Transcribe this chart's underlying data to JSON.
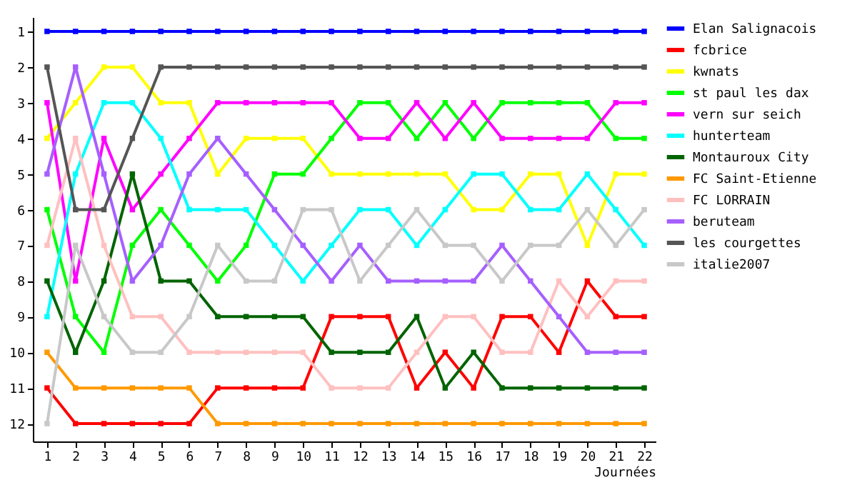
{
  "chart_data": {
    "type": "line",
    "xlabel": "Journées",
    "x": [
      1,
      2,
      3,
      4,
      5,
      6,
      7,
      8,
      9,
      10,
      11,
      12,
      13,
      14,
      15,
      16,
      17,
      18,
      19,
      20,
      21,
      22
    ],
    "xlim": [
      0.5,
      22.4
    ],
    "xticks": [
      1,
      2,
      3,
      4,
      5,
      6,
      7,
      8,
      9,
      10,
      11,
      12,
      13,
      14,
      15,
      16,
      17,
      18,
      19,
      20,
      21,
      22
    ],
    "ylim": [
      12.5,
      0.6
    ],
    "yticks": [
      1,
      2,
      3,
      4,
      5,
      6,
      7,
      8,
      9,
      10,
      11,
      12
    ],
    "grid": false,
    "legend": "right",
    "marker": "square",
    "line_style": "solid",
    "series": [
      {
        "name": "Elan Salignacois",
        "color": "#0000ff",
        "values": [
          1,
          1,
          1,
          1,
          1,
          1,
          1,
          1,
          1,
          1,
          1,
          1,
          1,
          1,
          1,
          1,
          1,
          1,
          1,
          1,
          1,
          1
        ]
      },
      {
        "name": "fcbrice",
        "color": "#ff0000",
        "values": [
          11,
          12,
          12,
          12,
          12,
          12,
          11,
          11,
          11,
          11,
          9,
          9,
          9,
          11,
          10,
          11,
          9,
          9,
          10,
          8,
          9,
          9
        ]
      },
      {
        "name": "kwnats",
        "color": "#ffff00",
        "values": [
          4,
          3,
          2,
          2,
          3,
          3,
          5,
          4,
          4,
          4,
          5,
          5,
          5,
          5,
          5,
          6,
          6,
          5,
          5,
          7,
          5,
          5
        ]
      },
      {
        "name": "st paul les dax",
        "color": "#00ff00",
        "values": [
          6,
          9,
          10,
          7,
          6,
          7,
          8,
          7,
          5,
          5,
          4,
          3,
          3,
          4,
          3,
          4,
          3,
          3,
          3,
          3,
          4,
          4
        ]
      },
      {
        "name": "vern sur seich",
        "color": "#ff00ff",
        "values": [
          3,
          8,
          4,
          6,
          5,
          4,
          3,
          3,
          3,
          3,
          3,
          4,
          4,
          3,
          4,
          3,
          4,
          4,
          4,
          4,
          3,
          3
        ]
      },
      {
        "name": "hunterteam",
        "color": "#00ffff",
        "values": [
          9,
          5,
          3,
          3,
          4,
          6,
          6,
          6,
          7,
          8,
          7,
          6,
          6,
          7,
          6,
          5,
          5,
          6,
          6,
          5,
          6,
          7
        ]
      },
      {
        "name": "Montauroux City",
        "color": "#006400",
        "values": [
          8,
          10,
          8,
          5,
          8,
          8,
          9,
          9,
          9,
          9,
          10,
          10,
          10,
          9,
          11,
          10,
          11,
          11,
          11,
          11,
          11,
          11
        ]
      },
      {
        "name": "FC Saint-Etienne",
        "color": "#ff9900",
        "values": [
          10,
          11,
          11,
          11,
          11,
          11,
          12,
          12,
          12,
          12,
          12,
          12,
          12,
          12,
          12,
          12,
          12,
          12,
          12,
          12,
          12,
          12
        ]
      },
      {
        "name": "FC LORRAIN",
        "color": "#ffc0c0",
        "values": [
          7,
          4,
          7,
          9,
          9,
          10,
          10,
          10,
          10,
          10,
          11,
          11,
          11,
          10,
          9,
          9,
          10,
          10,
          8,
          9,
          8,
          8
        ]
      },
      {
        "name": "beruteam",
        "color": "#a65fff",
        "values": [
          5,
          2,
          5,
          8,
          7,
          5,
          4,
          5,
          6,
          7,
          8,
          7,
          8,
          8,
          8,
          8,
          7,
          8,
          9,
          10,
          10,
          10
        ]
      },
      {
        "name": "les courgettes",
        "color": "#555555",
        "values": [
          2,
          6,
          6,
          4,
          2,
          2,
          2,
          2,
          2,
          2,
          2,
          2,
          2,
          2,
          2,
          2,
          2,
          2,
          2,
          2,
          2,
          2
        ]
      },
      {
        "name": "italie2007",
        "color": "#c8c8c8",
        "values": [
          12,
          7,
          9,
          10,
          10,
          9,
          7,
          8,
          8,
          6,
          6,
          8,
          7,
          6,
          7,
          7,
          8,
          7,
          7,
          6,
          7,
          6
        ]
      }
    ]
  }
}
